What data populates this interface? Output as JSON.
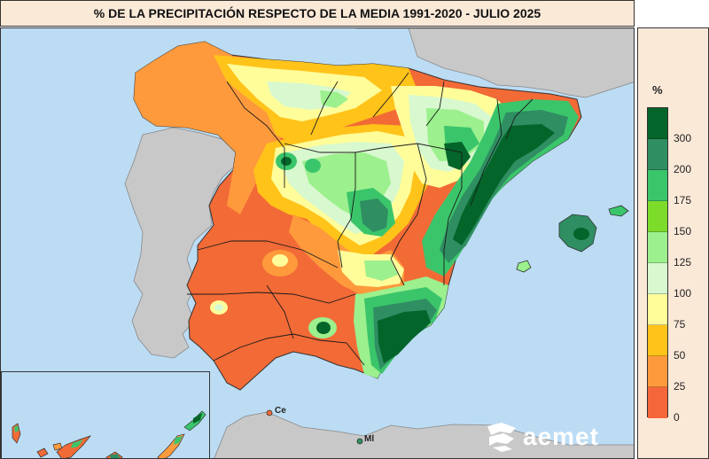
{
  "title": "% DE LA PRECIPITACIÓN RESPECTO DE LA MEDIA 1991-2020 - JULIO 2025",
  "legend": {
    "unit": "%",
    "classes": [
      {
        "label": "300",
        "color": "#006b2e"
      },
      {
        "label": "200",
        "color": "#35936a"
      },
      {
        "label": "175",
        "color": "#33cc66"
      },
      {
        "label": "150",
        "color": "#7ee61f"
      },
      {
        "label": "125",
        "color": "#9af28a"
      },
      {
        "label": "100",
        "color": "#ccf5cc"
      },
      {
        "label": "75",
        "color": "#f5f5cc"
      },
      {
        "label": "50",
        "color": "#fffa8c"
      },
      {
        "label": "25",
        "color": "#ffc400"
      },
      {
        "label": "0",
        "color": "#ff9933"
      }
    ],
    "lowest_color": "#f5663a"
  },
  "colors": {
    "sea": "#bcdcf4",
    "neighbor_land": "#c8c8c8",
    "very_dry": "#f26a36",
    "dry": "#ff9a3c",
    "dry2": "#ffc31a",
    "near_normal": "#fffd9a",
    "normal": "#d8f8cf",
    "wet": "#9cf08d",
    "wetter": "#7ddc2a",
    "very_wet": "#3bc56b",
    "extreme": "#2f8e62",
    "extreme2": "#03652a"
  },
  "cities": {
    "ceuta": "Ce",
    "melilla": "Ml"
  },
  "logo": {
    "text": "aemet"
  }
}
